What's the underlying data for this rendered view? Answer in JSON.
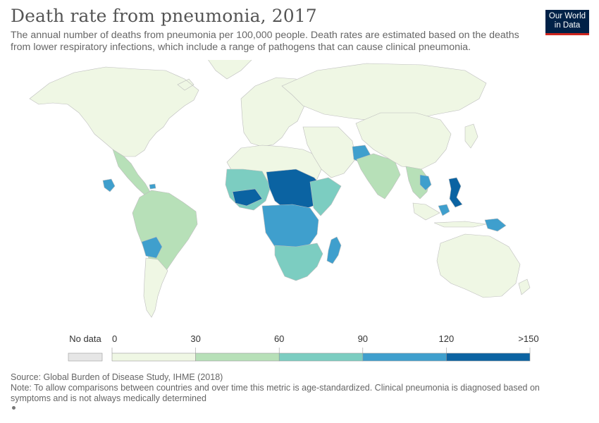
{
  "title": "Death rate from pneumonia, 2017",
  "subtitle": "The annual number of deaths from pneumonia per 100,000 people. Death rates are estimated based on the deaths from lower respiratory infections, which include a range of pathogens that can cause clinical pneumonia.",
  "logo": {
    "line1": "Our World",
    "line2": "in Data",
    "bg": "#002147",
    "accent": "#ce261e"
  },
  "legend": {
    "no_data_label": "No data",
    "no_data_color": "#e6e6e6",
    "bins": [
      {
        "from": "0",
        "to": "30",
        "color": "#eff7e4"
      },
      {
        "from": "30",
        "to": "60",
        "color": "#b7e0b8"
      },
      {
        "from": "60",
        "to": "90",
        "color": "#7ccdc1"
      },
      {
        "from": "90",
        "to": "120",
        "color": "#3f9fcd"
      },
      {
        "from": "120",
        "to": ">150",
        "color": "#0b63a2"
      }
    ]
  },
  "map": {
    "land_outline": "#bdbdbd",
    "regions": [
      {
        "name": "north-america",
        "bin": 0
      },
      {
        "name": "greenland",
        "bin": 0
      },
      {
        "name": "central-america",
        "bin": 1
      },
      {
        "name": "guatemala",
        "bin": 3
      },
      {
        "name": "haiti",
        "bin": 3
      },
      {
        "name": "south-america",
        "bin": 1
      },
      {
        "name": "bolivia",
        "bin": 3
      },
      {
        "name": "argentina-chile",
        "bin": 0
      },
      {
        "name": "europe",
        "bin": 0
      },
      {
        "name": "russia",
        "bin": 0
      },
      {
        "name": "north-africa",
        "bin": 0
      },
      {
        "name": "west-africa",
        "bin": 2
      },
      {
        "name": "sahel-africa",
        "bin": 4
      },
      {
        "name": "central-africa",
        "bin": 3
      },
      {
        "name": "east-africa",
        "bin": 2
      },
      {
        "name": "southern-africa",
        "bin": 2
      },
      {
        "name": "madagascar",
        "bin": 3
      },
      {
        "name": "middle-east",
        "bin": 0
      },
      {
        "name": "afghanistan",
        "bin": 3
      },
      {
        "name": "south-asia",
        "bin": 1
      },
      {
        "name": "china",
        "bin": 0
      },
      {
        "name": "mainland-southeast-asia",
        "bin": 1
      },
      {
        "name": "laos-cambodia",
        "bin": 3
      },
      {
        "name": "philippines",
        "bin": 4
      },
      {
        "name": "indonesia",
        "bin": 0
      },
      {
        "name": "sulawesi",
        "bin": 3
      },
      {
        "name": "papua-new-guinea",
        "bin": 3
      },
      {
        "name": "japan",
        "bin": 0
      },
      {
        "name": "australia",
        "bin": 0
      },
      {
        "name": "new-zealand",
        "bin": 0
      }
    ]
  },
  "footer": {
    "source": "Source: Global Burden of Disease Study, IHME (2018)",
    "note": "Note: To allow comparisons between countries and over time this metric is age-standardized. Clinical pneumonia is diagnosed based on symptoms and is not always medically determined"
  }
}
